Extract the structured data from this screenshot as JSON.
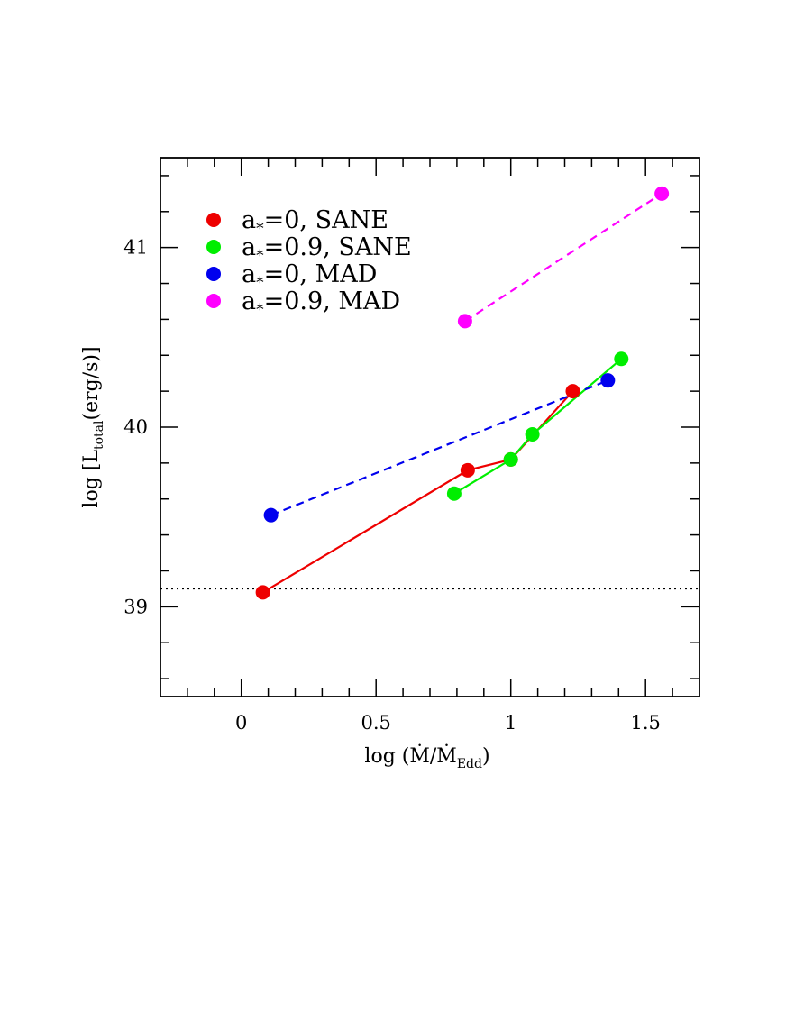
{
  "chart_data": {
    "type": "scatter",
    "title": "",
    "xlabel": "log (Ṁ/Ṁ_Edd)",
    "ylabel": "log [L_total(erg/s)]",
    "xlabel_parts": {
      "prefix": "log (",
      "main": "Ṁ/Ṁ",
      "sub": "Edd",
      "suffix": ")"
    },
    "ylabel_parts": {
      "prefix": "log [L",
      "sub": "total",
      "suffix": "(erg/s)]"
    },
    "xlim": [
      -0.3,
      1.7
    ],
    "ylim": [
      38.5,
      41.5
    ],
    "x_ticks": [
      {
        "value": 0,
        "label": "0"
      },
      {
        "value": 0.5,
        "label": "0.5"
      },
      {
        "value": 1,
        "label": "1"
      },
      {
        "value": 1.5,
        "label": "1.5"
      }
    ],
    "y_ticks": [
      {
        "value": 39,
        "label": "39"
      },
      {
        "value": 40,
        "label": "40"
      },
      {
        "value": 41,
        "label": "41"
      }
    ],
    "x_minor_step": 0.1,
    "y_minor_step": 0.2,
    "grid": false,
    "legend_position": "top-left",
    "reference_line": {
      "y": 39.1,
      "style": "dotted",
      "color": "#000000"
    },
    "series": [
      {
        "name": "a*=0, SANE",
        "legend": {
          "prefix": "a",
          "sub": "*",
          "suffix": "=0, SANE"
        },
        "color": "#ee0000",
        "line_style": "solid",
        "x": [
          0.08,
          0.84,
          1.0,
          1.23
        ],
        "y": [
          39.08,
          39.76,
          39.82,
          40.2
        ]
      },
      {
        "name": "a*=0.9, SANE",
        "legend": {
          "prefix": "a",
          "sub": "*",
          "suffix": "=0.9, SANE"
        },
        "color": "#00ee00",
        "line_style": "solid",
        "x": [
          0.79,
          1.0,
          1.08,
          1.41
        ],
        "y": [
          39.63,
          39.82,
          39.96,
          40.38
        ]
      },
      {
        "name": "a*=0, MAD",
        "legend": {
          "prefix": "a",
          "sub": "*",
          "suffix": "=0, MAD"
        },
        "color": "#0000ee",
        "line_style": "dashed",
        "x": [
          0.11,
          1.36
        ],
        "y": [
          39.51,
          40.26
        ]
      },
      {
        "name": "a*=0.9, MAD",
        "legend": {
          "prefix": "a",
          "sub": "*",
          "suffix": "=0.9, MAD"
        },
        "color": "#ff00ff",
        "line_style": "dashed",
        "x": [
          0.83,
          1.56
        ],
        "y": [
          40.59,
          41.3
        ]
      }
    ]
  }
}
